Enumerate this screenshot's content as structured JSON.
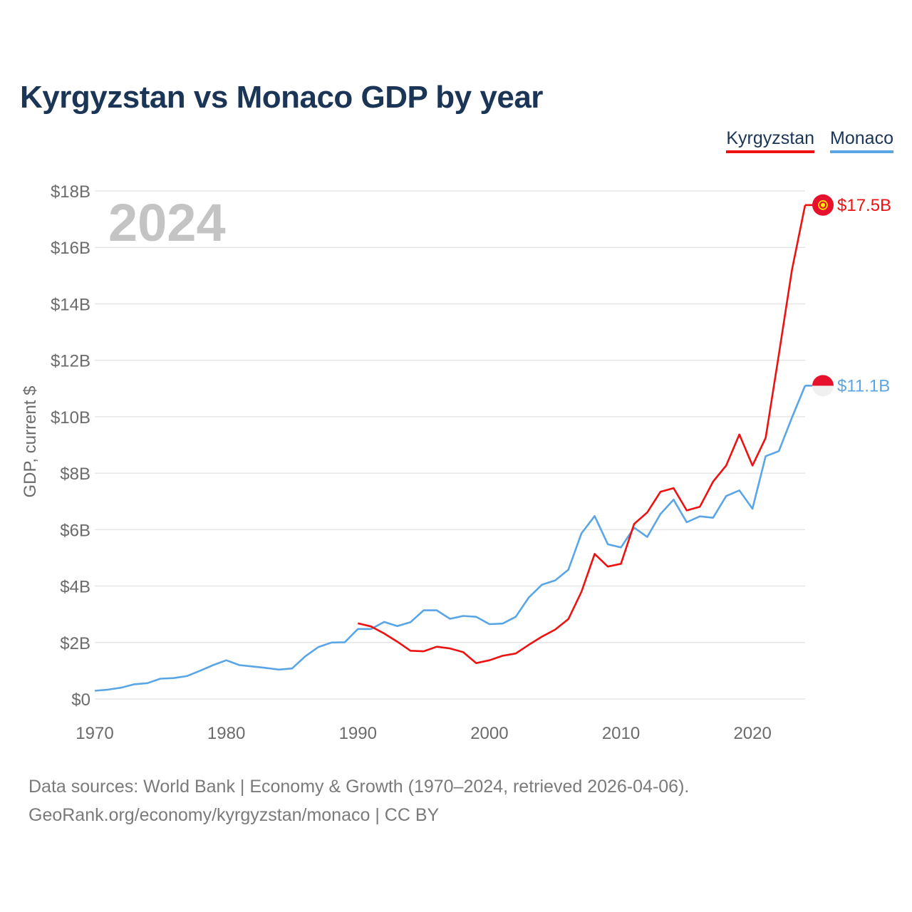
{
  "title": "Kyrgyzstan vs Monaco GDP by year",
  "year_label": "2024",
  "footer": {
    "sources": "Data sources: World Bank | Economy & Growth (1970–2024, retrieved 2026-04-06).",
    "credit": "GeoRank.org/economy/kyrgyzstan/monaco | CC BY"
  },
  "colors": {
    "kyrgyzstan": "#ee1111",
    "monaco": "#5aa5e6",
    "grid": "#e6e6e6",
    "tick": "#6b6b6b",
    "year": "#c4c4c4"
  },
  "chart_data": {
    "type": "line",
    "title": "Kyrgyzstan vs Monaco GDP by year",
    "xlabel": "",
    "ylabel": "GDP, current $",
    "xlim": [
      1970,
      2024
    ],
    "ylim": [
      0,
      18
    ],
    "x_ticks": [
      1970,
      1980,
      1990,
      2000,
      2010,
      2020
    ],
    "y_ticks": [
      0,
      2,
      4,
      6,
      8,
      10,
      12,
      14,
      16,
      18
    ],
    "y_tick_labels": [
      "$0",
      "$2B",
      "$4B",
      "$6B",
      "$8B",
      "$10B",
      "$12B",
      "$14B",
      "$16B",
      "$18B"
    ],
    "legend": [
      "Kyrgyzstan",
      "Monaco"
    ],
    "legend_position": "top-right",
    "grid": true,
    "series": [
      {
        "name": "Kyrgyzstan",
        "end_label": "$17.5B",
        "x": [
          1990,
          1991,
          1992,
          1993,
          1994,
          1995,
          1996,
          1997,
          1998,
          1999,
          2000,
          2001,
          2002,
          2003,
          2004,
          2005,
          2006,
          2007,
          2008,
          2009,
          2010,
          2011,
          2012,
          2013,
          2014,
          2015,
          2016,
          2017,
          2018,
          2019,
          2020,
          2021,
          2022,
          2023,
          2024
        ],
        "values": [
          2.68,
          2.57,
          2.32,
          2.03,
          1.71,
          1.69,
          1.85,
          1.79,
          1.66,
          1.27,
          1.37,
          1.53,
          1.61,
          1.92,
          2.21,
          2.46,
          2.83,
          3.8,
          5.14,
          4.69,
          4.79,
          6.2,
          6.61,
          7.34,
          7.47,
          6.68,
          6.81,
          7.7,
          8.27,
          9.37,
          8.27,
          9.25,
          12.2,
          15.2,
          17.5
        ]
      },
      {
        "name": "Monaco",
        "end_label": "$11.1B",
        "x": [
          1970,
          1971,
          1972,
          1973,
          1974,
          1975,
          1976,
          1977,
          1978,
          1979,
          1980,
          1981,
          1982,
          1983,
          1984,
          1985,
          1986,
          1987,
          1988,
          1989,
          1990,
          1991,
          1992,
          1993,
          1994,
          1995,
          1996,
          1997,
          1998,
          1999,
          2000,
          2001,
          2002,
          2003,
          2004,
          2005,
          2006,
          2007,
          2008,
          2009,
          2010,
          2011,
          2012,
          2013,
          2014,
          2015,
          2016,
          2017,
          2018,
          2019,
          2020,
          2021,
          2022,
          2023,
          2024
        ],
        "values": [
          0.29,
          0.33,
          0.4,
          0.52,
          0.56,
          0.72,
          0.74,
          0.81,
          1.0,
          1.2,
          1.37,
          1.2,
          1.15,
          1.1,
          1.04,
          1.08,
          1.51,
          1.84,
          2.0,
          2.01,
          2.48,
          2.48,
          2.73,
          2.58,
          2.72,
          3.14,
          3.14,
          2.84,
          2.94,
          2.91,
          2.65,
          2.67,
          2.91,
          3.6,
          4.05,
          4.2,
          4.58,
          5.87,
          6.48,
          5.48,
          5.37,
          6.07,
          5.74,
          6.55,
          7.06,
          6.26,
          6.47,
          6.42,
          7.19,
          7.39,
          6.74,
          8.6,
          8.78,
          9.97,
          11.1
        ]
      }
    ]
  }
}
